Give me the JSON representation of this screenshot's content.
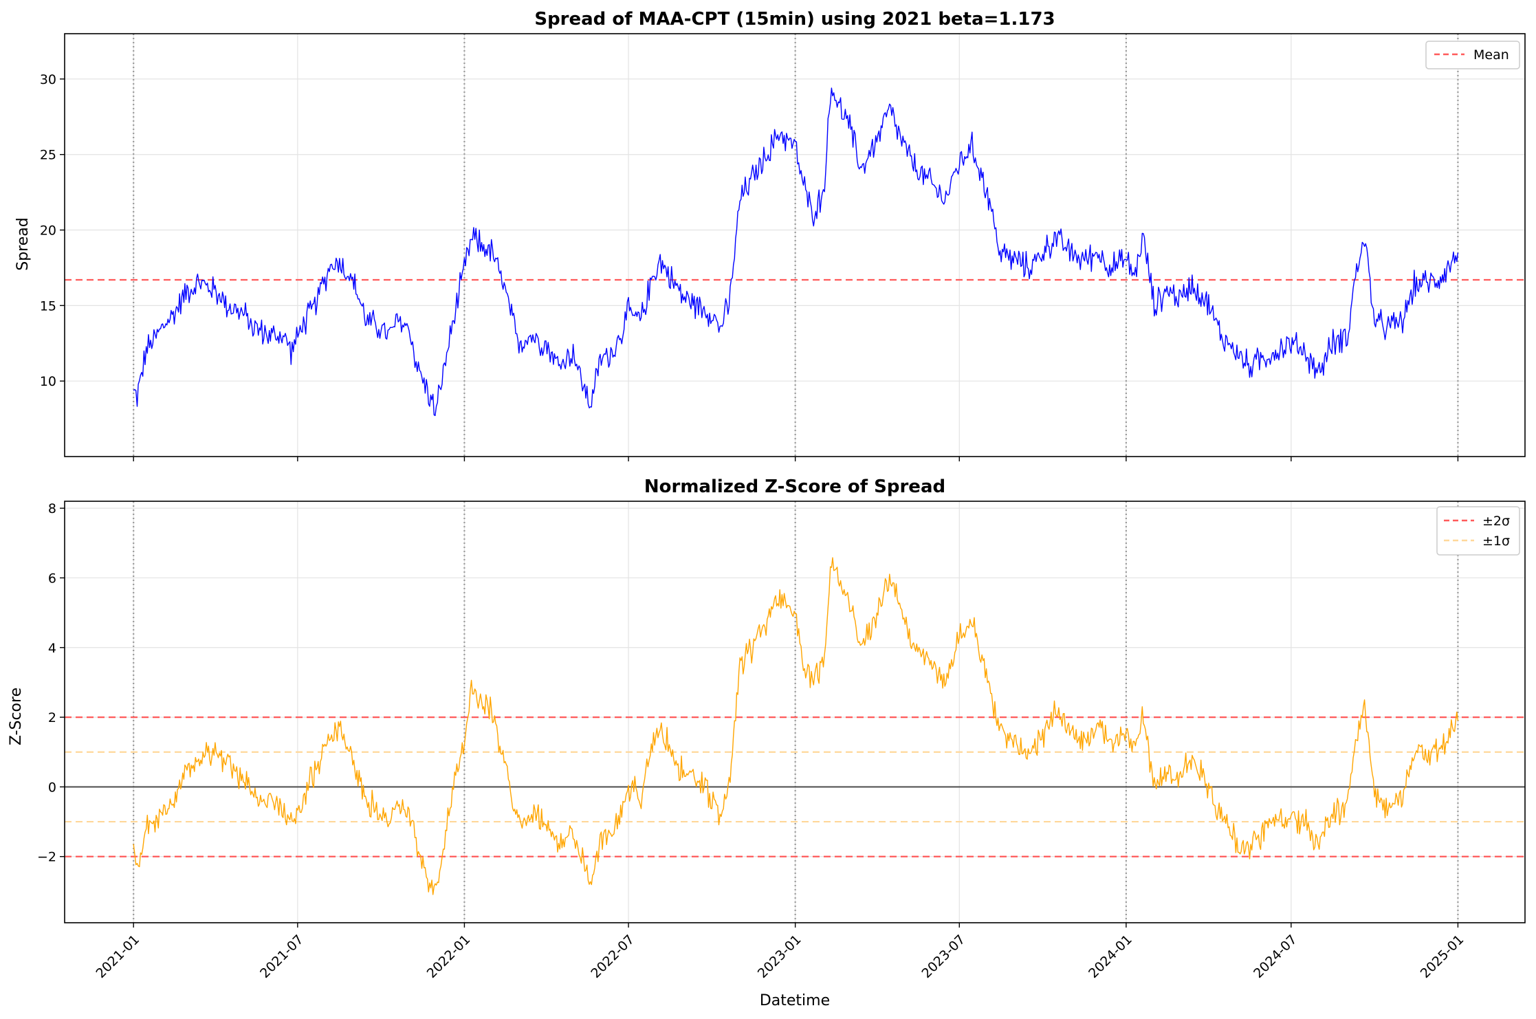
{
  "chart_data": [
    {
      "type": "line",
      "title": "Spread of MAA-CPT (15min) using 2021 beta=1.173",
      "xlabel": "",
      "ylabel": "Spread",
      "ylim": [
        5,
        33
      ],
      "yticks": [
        10,
        15,
        20,
        25,
        30
      ],
      "xticks": [
        "2021-01",
        "2021-07",
        "2022-01",
        "2022-07",
        "2023-01",
        "2023-07",
        "2024-01",
        "2024-07",
        "2025-01"
      ],
      "xrange": [
        "2020-10-17",
        "2025-03-16"
      ],
      "grid": true,
      "legend": {
        "position": "top-right",
        "entries": [
          {
            "label": "Mean",
            "style": "dashed",
            "color": "#ff5a5a"
          }
        ]
      },
      "year_boundaries": [
        "2021-01-01",
        "2022-01-01",
        "2023-01-01",
        "2024-01-01",
        "2025-01-01"
      ],
      "reference_lines": [
        {
          "label": "Mean",
          "y": 16.7,
          "color": "#ff5a5a",
          "style": "dashed"
        }
      ],
      "series": [
        {
          "color": "#0000ff",
          "x": [
            "2021-01-01",
            "2021-01-05",
            "2021-01-15",
            "2021-02-01",
            "2021-02-15",
            "2021-03-01",
            "2021-03-15",
            "2021-04-01",
            "2021-04-15",
            "2021-05-01",
            "2021-05-15",
            "2021-06-01",
            "2021-06-15",
            "2021-06-25",
            "2021-07-05",
            "2021-07-20",
            "2021-08-05",
            "2021-08-15",
            "2021-09-01",
            "2021-09-15",
            "2021-10-01",
            "2021-10-10",
            "2021-10-20",
            "2021-11-01",
            "2021-11-10",
            "2021-11-20",
            "2021-12-01",
            "2021-12-10",
            "2021-12-20",
            "2022-01-01",
            "2022-01-10",
            "2022-01-20",
            "2022-02-01",
            "2022-02-15",
            "2022-03-01",
            "2022-03-15",
            "2022-04-01",
            "2022-04-15",
            "2022-05-01",
            "2022-05-10",
            "2022-05-20",
            "2022-06-01",
            "2022-06-15",
            "2022-07-01",
            "2022-07-15",
            "2022-07-25",
            "2022-08-05",
            "2022-08-20",
            "2022-09-01",
            "2022-09-15",
            "2022-10-01",
            "2022-10-10",
            "2022-10-20",
            "2022-11-01",
            "2022-11-15",
            "2022-12-01",
            "2022-12-15",
            "2023-01-01",
            "2023-01-10",
            "2023-01-20",
            "2023-02-01",
            "2023-02-10",
            "2023-02-20",
            "2023-03-01",
            "2023-03-15",
            "2023-04-01",
            "2023-04-15",
            "2023-05-01",
            "2023-05-15",
            "2023-06-01",
            "2023-06-15",
            "2023-07-01",
            "2023-07-15",
            "2023-08-01",
            "2023-08-15",
            "2023-09-01",
            "2023-09-15",
            "2023-10-01",
            "2023-10-15",
            "2023-11-01",
            "2023-11-15",
            "2023-12-01",
            "2023-12-15",
            "2024-01-01",
            "2024-01-10",
            "2024-01-20",
            "2024-02-01",
            "2024-02-15",
            "2024-03-01",
            "2024-03-15",
            "2024-04-01",
            "2024-04-15",
            "2024-05-01",
            "2024-05-15",
            "2024-06-01",
            "2024-06-15",
            "2024-07-01",
            "2024-07-15",
            "2024-08-01",
            "2024-08-15",
            "2024-09-01",
            "2024-09-10",
            "2024-09-20",
            "2024-10-01",
            "2024-10-15",
            "2024-11-01",
            "2024-11-15",
            "2024-12-01",
            "2024-12-15",
            "2025-01-01"
          ],
          "y": [
            9.2,
            9.0,
            12.0,
            13.5,
            14.5,
            16.0,
            16.5,
            16.0,
            15.0,
            14.5,
            13.5,
            13.0,
            13.0,
            12.0,
            13.5,
            15.0,
            17.5,
            18.0,
            16.5,
            14.0,
            13.5,
            13.0,
            14.0,
            13.5,
            11.0,
            9.5,
            8.0,
            11.0,
            14.0,
            17.5,
            19.5,
            19.0,
            18.5,
            16.0,
            12.5,
            13.0,
            12.5,
            11.0,
            12.0,
            10.0,
            8.5,
            11.5,
            12.0,
            14.5,
            14.0,
            16.5,
            18.0,
            16.5,
            15.5,
            15.0,
            14.5,
            13.5,
            15.0,
            22.0,
            23.5,
            25.0,
            26.5,
            25.5,
            23.0,
            21.0,
            22.5,
            29.5,
            28.0,
            27.0,
            24.0,
            26.0,
            28.0,
            25.5,
            24.0,
            23.0,
            22.0,
            24.5,
            25.5,
            22.5,
            18.5,
            18.0,
            17.5,
            18.5,
            19.5,
            18.5,
            18.0,
            18.5,
            17.5,
            18.0,
            17.0,
            19.5,
            15.0,
            16.0,
            15.5,
            16.5,
            15.0,
            13.0,
            12.0,
            11.0,
            11.5,
            12.0,
            12.5,
            12.0,
            10.5,
            12.5,
            13.0,
            17.0,
            19.5,
            14.0,
            13.5,
            14.0,
            16.5,
            16.5,
            17.0,
            18.5
          ]
        }
      ]
    },
    {
      "type": "line",
      "title": "Normalized Z-Score of Spread",
      "xlabel": "Datetime",
      "ylabel": "Z-Score",
      "ylim": [
        -3.9,
        8.2
      ],
      "yticks": [
        -2,
        0,
        2,
        4,
        6,
        8
      ],
      "ytick_labels": [
        "−2",
        "0",
        "2",
        "4",
        "6",
        "8"
      ],
      "xticks": [
        "2021-01",
        "2021-07",
        "2022-01",
        "2022-07",
        "2023-01",
        "2023-07",
        "2024-01",
        "2024-07",
        "2025-01"
      ],
      "xrange": [
        "2020-10-17",
        "2025-03-16"
      ],
      "grid": true,
      "legend": {
        "position": "top-right",
        "entries": [
          {
            "label": "±2σ",
            "style": "dashed",
            "color": "#ff5a5a"
          },
          {
            "label": "±1σ",
            "style": "dashed",
            "color": "#ffd89a"
          }
        ]
      },
      "year_boundaries": [
        "2021-01-01",
        "2022-01-01",
        "2023-01-01",
        "2024-01-01",
        "2025-01-01"
      ],
      "reference_lines": [
        {
          "y": 2,
          "color": "#ff5a5a",
          "style": "dashed"
        },
        {
          "y": -2,
          "color": "#ff5a5a",
          "style": "dashed"
        },
        {
          "y": 1,
          "color": "#ffd89a",
          "style": "dashed"
        },
        {
          "y": -1,
          "color": "#ffd89a",
          "style": "dashed"
        },
        {
          "y": 0,
          "color": "#555555",
          "style": "solid"
        }
      ],
      "series": [
        {
          "color": "#ffa500",
          "x": [
            "2021-01-01",
            "2021-01-05",
            "2021-01-15",
            "2021-02-01",
            "2021-02-15",
            "2021-03-01",
            "2021-03-15",
            "2021-04-01",
            "2021-04-15",
            "2021-05-01",
            "2021-05-15",
            "2021-06-01",
            "2021-06-15",
            "2021-06-25",
            "2021-07-05",
            "2021-07-20",
            "2021-08-05",
            "2021-08-15",
            "2021-09-01",
            "2021-09-15",
            "2021-10-01",
            "2021-10-10",
            "2021-10-20",
            "2021-11-01",
            "2021-11-10",
            "2021-11-20",
            "2021-12-01",
            "2021-12-10",
            "2021-12-20",
            "2022-01-01",
            "2022-01-10",
            "2022-01-20",
            "2022-02-01",
            "2022-02-15",
            "2022-03-01",
            "2022-03-15",
            "2022-04-01",
            "2022-04-15",
            "2022-05-01",
            "2022-05-10",
            "2022-05-20",
            "2022-06-01",
            "2022-06-15",
            "2022-07-01",
            "2022-07-15",
            "2022-07-25",
            "2022-08-05",
            "2022-08-20",
            "2022-09-01",
            "2022-09-15",
            "2022-10-01",
            "2022-10-10",
            "2022-10-20",
            "2022-11-01",
            "2022-11-15",
            "2022-12-01",
            "2022-12-15",
            "2023-01-01",
            "2023-01-10",
            "2023-01-20",
            "2023-02-01",
            "2023-02-10",
            "2023-02-20",
            "2023-03-01",
            "2023-03-15",
            "2023-04-01",
            "2023-04-15",
            "2023-05-01",
            "2023-05-15",
            "2023-06-01",
            "2023-06-15",
            "2023-07-01",
            "2023-07-15",
            "2023-08-01",
            "2023-08-15",
            "2023-09-01",
            "2023-09-15",
            "2023-10-01",
            "2023-10-15",
            "2023-11-01",
            "2023-11-15",
            "2023-12-01",
            "2023-12-15",
            "2024-01-01",
            "2024-01-10",
            "2024-01-20",
            "2024-02-01",
            "2024-02-15",
            "2024-03-01",
            "2024-03-15",
            "2024-04-01",
            "2024-04-15",
            "2024-05-01",
            "2024-05-15",
            "2024-06-01",
            "2024-06-15",
            "2024-07-01",
            "2024-07-15",
            "2024-08-01",
            "2024-08-15",
            "2024-09-01",
            "2024-09-10",
            "2024-09-20",
            "2024-10-01",
            "2024-10-15",
            "2024-11-01",
            "2024-11-15",
            "2024-12-01",
            "2024-12-15",
            "2025-01-01"
          ],
          "y": [
            -2.0,
            -2.2,
            -1.3,
            -0.8,
            -0.3,
            0.5,
            0.9,
            1.0,
            0.7,
            0.3,
            -0.2,
            -0.5,
            -0.7,
            -1.0,
            -0.5,
            0.4,
            1.5,
            1.8,
            0.8,
            -0.3,
            -0.8,
            -1.0,
            -0.5,
            -0.8,
            -1.8,
            -2.5,
            -3.0,
            -1.5,
            0.0,
            1.5,
            2.8,
            2.5,
            2.2,
            0.5,
            -1.0,
            -0.8,
            -1.0,
            -1.8,
            -1.2,
            -2.0,
            -2.8,
            -1.5,
            -1.2,
            0.0,
            -0.3,
            0.8,
            1.8,
            0.8,
            0.3,
            0.2,
            -0.3,
            -0.8,
            0.0,
            3.5,
            4.0,
            4.8,
            5.5,
            5.0,
            3.5,
            3.0,
            3.5,
            6.5,
            6.0,
            5.5,
            4.0,
            5.0,
            6.0,
            4.8,
            4.0,
            3.5,
            3.0,
            4.3,
            4.8,
            3.2,
            1.5,
            1.3,
            1.0,
            1.5,
            2.2,
            1.6,
            1.3,
            1.7,
            1.2,
            1.5,
            1.0,
            2.2,
            0.0,
            0.5,
            0.3,
            0.8,
            0.0,
            -1.0,
            -1.5,
            -1.8,
            -1.3,
            -1.0,
            -0.8,
            -1.0,
            -1.6,
            -0.8,
            -0.5,
            1.2,
            2.5,
            -0.3,
            -0.7,
            -0.3,
            1.0,
            0.9,
            1.2,
            1.9
          ]
        }
      ]
    }
  ]
}
